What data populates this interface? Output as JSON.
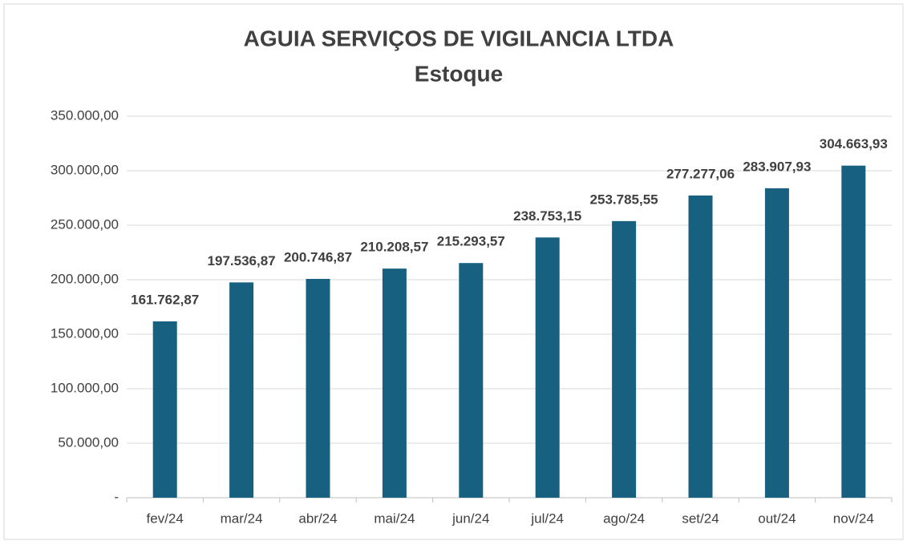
{
  "chart_data": {
    "type": "bar",
    "title": "AGUIA SERVIÇOS DE VIGILANCIA LTDA",
    "subtitle": "Estoque",
    "categories": [
      "fev/24",
      "mar/24",
      "abr/24",
      "mai/24",
      "jun/24",
      "jul/24",
      "ago/24",
      "set/24",
      "out/24",
      "nov/24"
    ],
    "values": [
      161762.87,
      197536.87,
      200746.87,
      210208.57,
      215293.57,
      238753.15,
      253785.55,
      277277.06,
      283907.93,
      304663.93
    ],
    "value_labels": [
      "161.762,87",
      "197.536,87",
      "200.746,87",
      "210.208,57",
      "215.293,57",
      "238.753,15",
      "253.785,55",
      "277.277,06",
      "283.907,93",
      "304.663,93"
    ],
    "color": "#17607f",
    "ylim": [
      0,
      350000
    ],
    "yticks": [
      {
        "value": 0,
        "label": "-"
      },
      {
        "value": 50000,
        "label": "50.000,00"
      },
      {
        "value": 100000,
        "label": "100.000,00"
      },
      {
        "value": 150000,
        "label": "150.000,00"
      },
      {
        "value": 200000,
        "label": "200.000,00"
      },
      {
        "value": 250000,
        "label": "250.000,00"
      },
      {
        "value": 300000,
        "label": "300.000,00"
      },
      {
        "value": 350000,
        "label": "350.000,00"
      }
    ],
    "grid": true
  }
}
